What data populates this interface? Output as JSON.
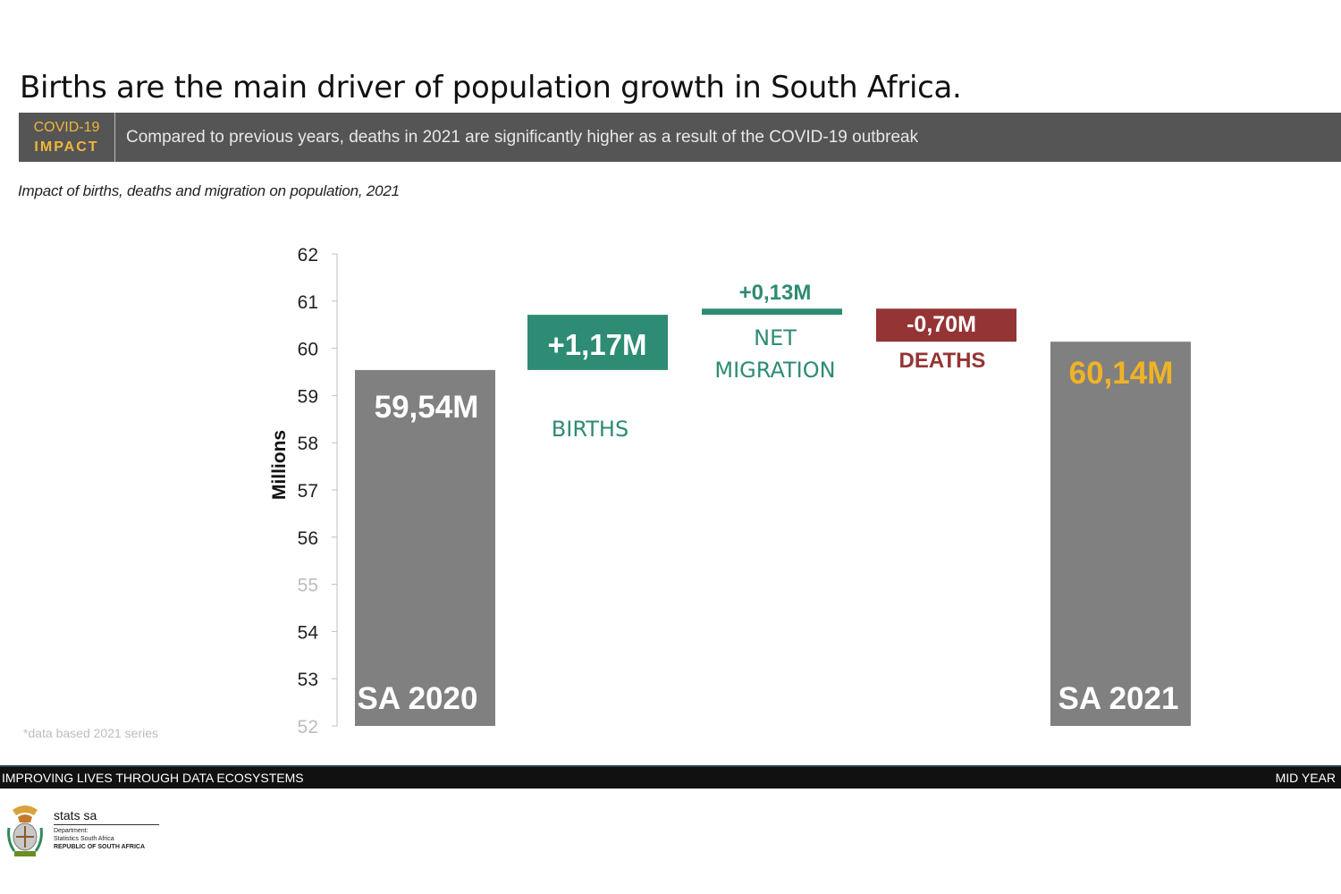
{
  "title": "Births are the main driver of population growth in South Africa.",
  "banner": {
    "tag_line1": "COVID-19",
    "tag_line2": "IMPACT",
    "message": "Compared to previous years, deaths in 2021 are significantly higher as a result of the COVID-19 outbreak"
  },
  "subtitle": "Impact of births, deaths and migration on population, 2021",
  "colors": {
    "total_bar": "#808080",
    "births": "#2e8b74",
    "migration": "#2e8b74",
    "deaths": "#953434",
    "highlight_value": "#f0b326",
    "axis_tick_faint": "#bdbdbd"
  },
  "chart_data": {
    "type": "bar",
    "subtype": "waterfall",
    "ylabel": "Millions",
    "ylim": [
      52,
      62
    ],
    "yticks": [
      62,
      61,
      60,
      59,
      58,
      57,
      56,
      55,
      54,
      53,
      52
    ],
    "steps": [
      {
        "key": "sa2020",
        "kind": "total",
        "label": "SA 2020",
        "value": 59.54,
        "value_label": "59,54M"
      },
      {
        "key": "births",
        "kind": "increase",
        "label": "BIRTHS",
        "base": 59.54,
        "value": 1.17,
        "value_label": "+1,17M"
      },
      {
        "key": "migration",
        "kind": "increase",
        "label": "NET\nMIGRATION",
        "base": 60.71,
        "value": 0.13,
        "value_label": "+0,13M"
      },
      {
        "key": "deaths",
        "kind": "decrease",
        "label": "DEATHS",
        "base": 60.84,
        "value": -0.7,
        "value_label": "-0,70M"
      },
      {
        "key": "sa2021",
        "kind": "total",
        "label": "SA 2021",
        "value": 60.14,
        "value_label": "60,14M"
      }
    ]
  },
  "footnote": "*data based 2021 series",
  "footer": {
    "left": "IMPROVING LIVES THROUGH DATA ECOSYSTEMS",
    "right": "MID YEAR"
  },
  "logo": {
    "name": "stats sa",
    "dept_line1": "Department:",
    "dept_line2": "Statistics South Africa",
    "dept_line3": "REPUBLIC OF SOUTH AFRICA"
  }
}
